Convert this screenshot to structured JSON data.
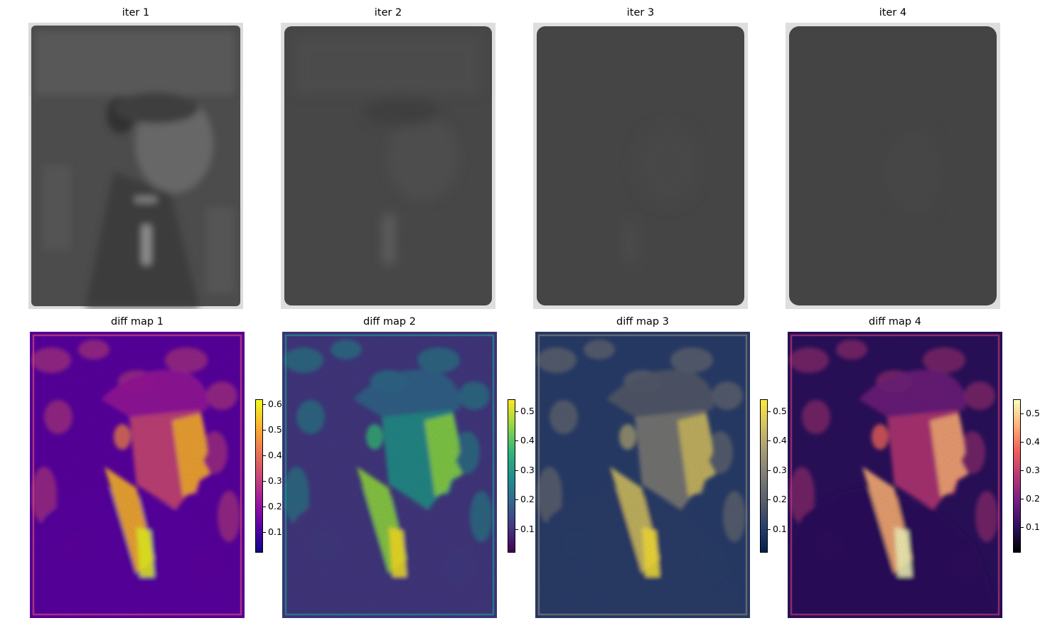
{
  "figure": {
    "top_titles": [
      "iter 1",
      "iter 2",
      "iter 3",
      "iter 4"
    ],
    "bottom_titles": [
      "diff map 1",
      "diff map 2",
      "diff map 3",
      "diff map 4"
    ],
    "top_images": [
      {
        "kind": "grayscale reconstruction",
        "mean_gray": "#4b4b4b",
        "border": "#f0f0f0"
      },
      {
        "kind": "grayscale reconstruction",
        "mean_gray": "#4a4a4a",
        "border": "#e8e8e8"
      },
      {
        "kind": "grayscale reconstruction",
        "mean_gray": "#474747",
        "border": "#e8e8e8"
      },
      {
        "kind": "grayscale reconstruction",
        "mean_gray": "#464646",
        "border": "#e8e8e8"
      }
    ]
  },
  "chart_data": [
    {
      "type": "heatmap",
      "title": "diff map 1",
      "colormap": "plasma",
      "colorbar": {
        "ticks": [
          "0.1",
          "0.2",
          "0.3",
          "0.4",
          "0.5",
          "0.6"
        ],
        "range": [
          0.02,
          0.62
        ]
      },
      "colors": [
        "#0d0887",
        "#5c01a6",
        "#9c179e",
        "#cc4778",
        "#ed7953",
        "#fdb42f",
        "#f0f921"
      ]
    },
    {
      "type": "heatmap",
      "title": "diff map 2",
      "colormap": "viridis",
      "colorbar": {
        "ticks": [
          "0.1",
          "0.2",
          "0.3",
          "0.4",
          "0.5"
        ],
        "range": [
          0.02,
          0.54
        ]
      },
      "colors": [
        "#440154",
        "#443983",
        "#31688e",
        "#21918c",
        "#35b779",
        "#90d743",
        "#fde725"
      ]
    },
    {
      "type": "heatmap",
      "title": "diff map 3",
      "colormap": "cividis",
      "colorbar": {
        "ticks": [
          "0.1",
          "0.2",
          "0.3",
          "0.4",
          "0.5"
        ],
        "range": [
          0.02,
          0.54
        ]
      },
      "colors": [
        "#00224e",
        "#2a3f6d",
        "#575d6d",
        "#7d7c78",
        "#a69d75",
        "#d3c164",
        "#fee838"
      ]
    },
    {
      "type": "heatmap",
      "title": "diff map 4",
      "colormap": "magma",
      "colorbar": {
        "ticks": [
          "0.1",
          "0.2",
          "0.3",
          "0.4",
          "0.5"
        ],
        "range": [
          0.01,
          0.55
        ]
      },
      "colors": [
        "#000004",
        "#2c115f",
        "#721f81",
        "#b73779",
        "#f1605d",
        "#feb078",
        "#fcfdbf"
      ]
    }
  ]
}
